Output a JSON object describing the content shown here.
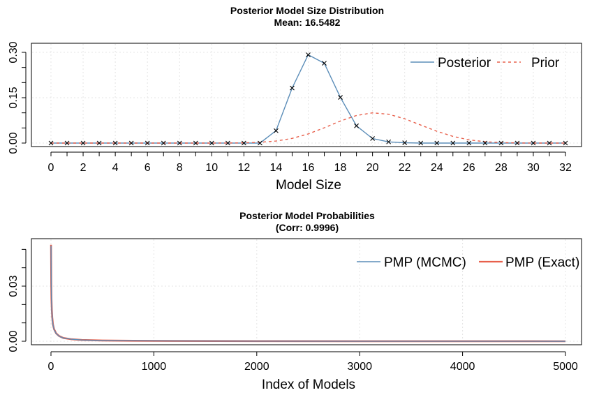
{
  "chart_data": [
    {
      "type": "line",
      "title": "Posterior Model Size Distribution",
      "subtitle": "Mean: 16.5482",
      "xlabel": "Model Size",
      "ylabel": "",
      "xlim": [
        0,
        32
      ],
      "ylim": [
        0,
        0.3
      ],
      "x_ticks": [
        0,
        2,
        4,
        6,
        8,
        10,
        12,
        14,
        16,
        18,
        20,
        22,
        24,
        26,
        28,
        30,
        32
      ],
      "y_ticks": [
        0.0,
        0.15,
        0.3
      ],
      "y_tick_labels": [
        "0.00",
        "0.15",
        "0.30"
      ],
      "x": [
        0,
        1,
        2,
        3,
        4,
        5,
        6,
        7,
        8,
        9,
        10,
        11,
        12,
        13,
        14,
        15,
        16,
        17,
        18,
        19,
        20,
        21,
        22,
        23,
        24,
        25,
        26,
        27,
        28,
        29,
        30,
        31,
        32
      ],
      "legend_position": "top-right",
      "series": [
        {
          "name": "Posterior",
          "color": "#5b8db8",
          "style": "solid",
          "markers": "x",
          "values": [
            0,
            0,
            0,
            0,
            0,
            0,
            0,
            0,
            0,
            0,
            0,
            0,
            0,
            0,
            0.041,
            0.182,
            0.292,
            0.264,
            0.151,
            0.057,
            0.015,
            0.004,
            0.001,
            0,
            0,
            0,
            0,
            0,
            0,
            0,
            0,
            0,
            0
          ]
        },
        {
          "name": "Prior",
          "color": "#e8604c",
          "style": "dashed",
          "values": [
            0,
            0,
            0,
            0,
            0,
            0,
            0,
            0,
            0,
            0,
            0,
            0.0002,
            0.0008,
            0.0025,
            0.0068,
            0.0155,
            0.0302,
            0.0505,
            0.0729,
            0.0911,
            0.1,
            0.0952,
            0.0802,
            0.0595,
            0.039,
            0.0222,
            0.0107,
            0.0044,
            0.0015,
            0.0004,
            0.0001,
            0,
            0
          ]
        }
      ]
    },
    {
      "type": "line",
      "title": "Posterior Model Probabilities",
      "subtitle": "(Corr: 0.9996)",
      "xlabel": "Index of Models",
      "ylabel": "",
      "xlim": [
        0,
        5000
      ],
      "ylim": [
        0,
        0.06
      ],
      "x_ticks": [
        0,
        1000,
        2000,
        3000,
        4000,
        5000
      ],
      "y_ticks": [
        0.0,
        0.03
      ],
      "y_tick_labels": [
        "0.00",
        "0.03"
      ],
      "y_minor_ticks": [
        0.01,
        0.02,
        0.04,
        0.05
      ],
      "legend_position": "top-right",
      "series": [
        {
          "name": "PMP (MCMC)",
          "color": "#5b8db8",
          "style": "solid",
          "x": [
            1,
            2,
            3,
            5,
            8,
            12,
            20,
            30,
            50,
            80,
            120,
            200,
            300,
            500,
            800,
            1200,
            2000,
            3000,
            4000,
            5000
          ],
          "values": [
            0.052,
            0.038,
            0.031,
            0.023,
            0.017,
            0.013,
            0.009,
            0.0065,
            0.0042,
            0.0027,
            0.0018,
            0.0011,
            0.0007,
            0.0004,
            0.00025,
            0.00015,
            8e-05,
            4e-05,
            2e-05,
            1e-05
          ]
        },
        {
          "name": "PMP (Exact)",
          "color": "#e8604c",
          "style": "solid",
          "x": [
            1,
            2,
            3,
            5,
            8,
            12,
            20,
            30,
            50,
            80,
            120,
            200,
            300,
            500,
            800,
            1200,
            2000,
            3000,
            4000,
            5000
          ],
          "values": [
            0.0525,
            0.0382,
            0.0312,
            0.0232,
            0.0171,
            0.0131,
            0.0091,
            0.0066,
            0.0043,
            0.0028,
            0.0018,
            0.0011,
            0.0007,
            0.0004,
            0.00025,
            0.00015,
            8e-05,
            4e-05,
            2e-05,
            1e-05
          ]
        }
      ]
    }
  ]
}
